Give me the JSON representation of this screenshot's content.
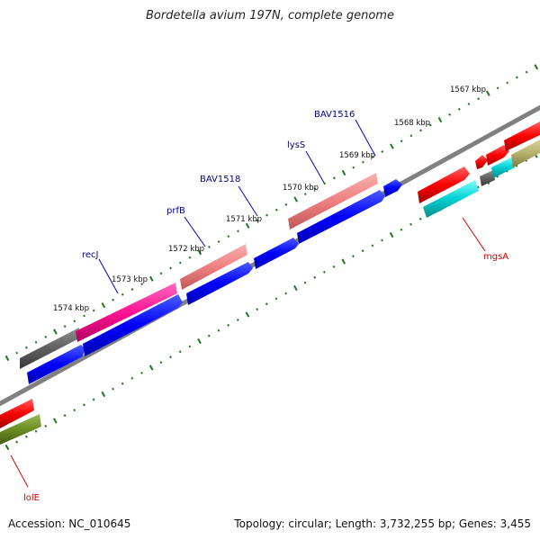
{
  "title": "Bordetella avium 197N, complete genome",
  "accession": "Accession: NC_010645",
  "summary": "Topology: circular; Length: 3,732,255 bp; Genes: 3,455",
  "kbp_labels": [
    "1567 kbp",
    "1568 kbp",
    "1569 kbp",
    "1570 kbp",
    "1571 kbp",
    "1572 kbp",
    "1573 kbp",
    "1574 kbp"
  ],
  "gene_labels_top": [
    "BAV1516",
    "lysS",
    "BAV1518",
    "prfB",
    "recJ"
  ],
  "gene_labels_bottom": [
    "mgsA",
    "lolE"
  ],
  "colors": {
    "forward_gene": "#0000ff",
    "highlight_gene": "#f08080",
    "recJ": "#ff1493",
    "grey_gene": "#606060",
    "red_gene": "#ff0000",
    "cyan_gene": "#00c8c8",
    "olive_gene": "#6b8e23",
    "khaki_gene": "#b5b06a",
    "label_blue": "#00008b",
    "label_red": "#cc0000",
    "tick": "#1a7a1a",
    "backbone": "#808080"
  }
}
